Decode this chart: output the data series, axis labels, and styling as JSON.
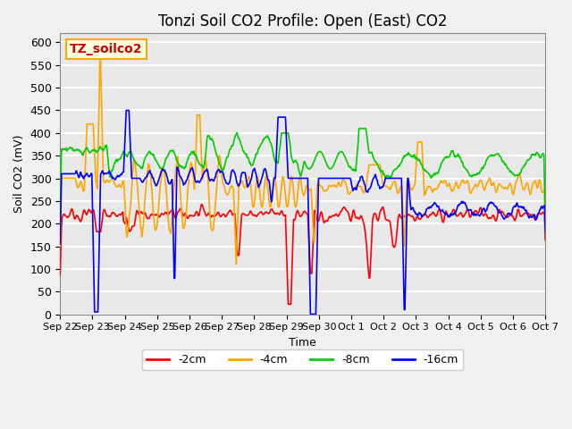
{
  "title": "Tonzi Soil CO2 Profile: Open (East) CO2",
  "ylabel": "Soil CO2 (mV)",
  "xlabel": "Time",
  "annotation": "TZ_soilco2",
  "ylim": [
    0,
    620
  ],
  "yticks": [
    0,
    50,
    100,
    150,
    200,
    250,
    300,
    350,
    400,
    450,
    500,
    550,
    600
  ],
  "xtick_labels": [
    "Sep 22",
    "Sep 23",
    "Sep 24",
    "Sep 25",
    "Sep 26",
    "Sep 27",
    "Sep 28",
    "Sep 29",
    "Sep 30",
    "Oct 1",
    "Oct 2",
    "Oct 3",
    "Oct 4",
    "Oct 5",
    "Oct 6",
    "Oct 7"
  ],
  "legend": [
    {
      "label": "-2cm",
      "color": "#ff0000"
    },
    {
      "label": "-4cm",
      "color": "#ffa500"
    },
    {
      "label": "-8cm",
      "color": "#00cc00"
    },
    {
      "label": "-16cm",
      "color": "#0000ff"
    }
  ],
  "bg_color": "#e8e8e8",
  "plot_bg_color": "#e8e8e8",
  "grid_color": "#ffffff",
  "line_width": 1.2,
  "title_fontsize": 12,
  "annotation_fontsize": 10
}
